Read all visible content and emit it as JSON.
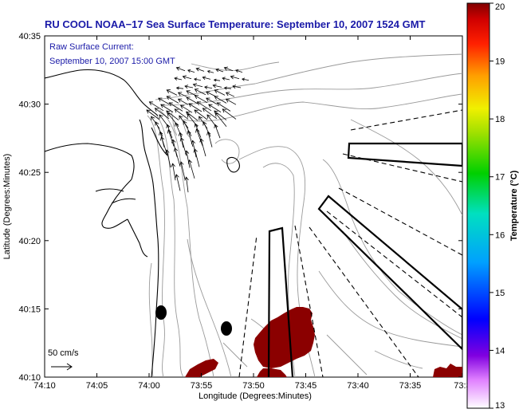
{
  "title": "RU COOL  NOAA−17  Sea Surface Temperature:  September 10, 2007 1524 GMT",
  "annotation": {
    "line1": "Raw Surface Current:",
    "line2": "September 10, 2007 15:00 GMT"
  },
  "scale_label": "50 cm/s",
  "x_axis": {
    "label": "Longitude (Degrees:Minutes)",
    "ticks": [
      "74:10",
      "74:05",
      "74:00",
      "73:55",
      "73:50",
      "73:45",
      "73:40",
      "73:35",
      "73:3"
    ]
  },
  "y_axis": {
    "label": "Latitude (Degrees:Minutes)",
    "ticks": [
      "40:10",
      "40:15",
      "40:20",
      "40:25",
      "40:30",
      "40:35"
    ]
  },
  "colorbar": {
    "label": "Temperature (°C)",
    "ticks": [
      "13",
      "14",
      "15",
      "16",
      "17",
      "18",
      "19",
      "20"
    ],
    "min": 13,
    "max": 20
  },
  "colors": {
    "title": "#1a1aa8",
    "sst_patch": "#8b0000",
    "contour": "#9a9a9a",
    "coast": "#000000"
  }
}
